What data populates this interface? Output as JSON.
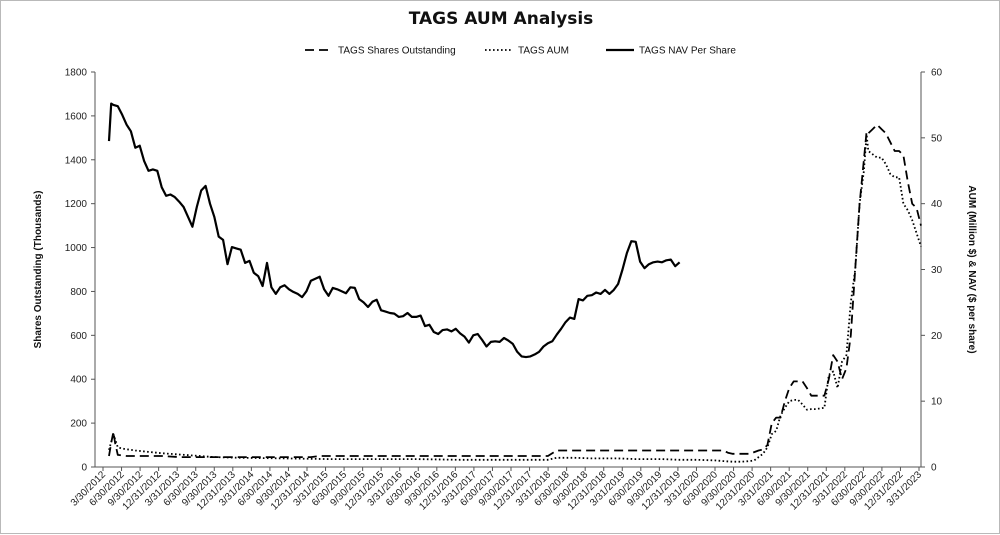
{
  "chart_data": {
    "type": "line",
    "title": "TAGS AUM Analysis",
    "ylabel_left": "Shares Outstanding (Thousands)",
    "ylabel_right": "AUM (Million $) & NAV ($ per share)",
    "ylim_left": [
      0,
      1800
    ],
    "ylim_right": [
      0,
      60
    ],
    "yticks_left": [
      0,
      200,
      400,
      600,
      800,
      1000,
      1200,
      1400,
      1600,
      1800
    ],
    "yticks_right": [
      0,
      10,
      20,
      30,
      40,
      50,
      60
    ],
    "legend_position": "top",
    "grid": false,
    "x_tick_labels": [
      "3/30/2012",
      "6/30/2012",
      "9/30/2012",
      "12/31/2012",
      "3/31/2013",
      "6/30/2013",
      "9/30/2013",
      "12/31/2013",
      "3/31/2014",
      "6/30/2014",
      "9/30/2014",
      "12/31/2014",
      "3/31/2015",
      "6/30/2015",
      "9/30/2015",
      "12/31/2015",
      "3/31/2016",
      "6/30/2016",
      "9/30/2016",
      "12/31/2016",
      "3/31/2017",
      "6/30/2017",
      "9/30/2017",
      "12/31/2017",
      "3/31/2018",
      "6/30/2018",
      "9/30/2018",
      "12/31/2018",
      "3/31/2019",
      "6/30/2019",
      "9/30/2019",
      "12/31/2019",
      "3/31/2020",
      "6/30/2020",
      "9/30/2020",
      "12/31/2020",
      "3/31/2021",
      "6/30/2021",
      "9/30/2021",
      "12/31/2021",
      "3/31/2022",
      "6/30/2022",
      "9/30/2022",
      "12/31/2022",
      "3/31/2023"
    ],
    "series": [
      {
        "name": "TAGS Shares Outstanding",
        "axis": "left",
        "style": "dashed",
        "points": [
          [
            0,
            50
          ],
          [
            0.5,
            110
          ],
          [
            1,
            160
          ],
          [
            1.4,
            110
          ],
          [
            2,
            55
          ],
          [
            4,
            50
          ],
          [
            8,
            50
          ],
          [
            12,
            50
          ],
          [
            16,
            45
          ],
          [
            22,
            45
          ],
          [
            28,
            45
          ],
          [
            34,
            45
          ],
          [
            40,
            45
          ],
          [
            46,
            45
          ],
          [
            48,
            50
          ],
          [
            50,
            50
          ],
          [
            52,
            50
          ],
          [
            54,
            50
          ],
          [
            56,
            50
          ],
          [
            58,
            50
          ],
          [
            60,
            50
          ],
          [
            62,
            50
          ],
          [
            64,
            50
          ],
          [
            66,
            50
          ],
          [
            68,
            50
          ],
          [
            70,
            50
          ],
          [
            72,
            50
          ],
          [
            74,
            50
          ],
          [
            76,
            50
          ],
          [
            78,
            50
          ],
          [
            80,
            50
          ],
          [
            82,
            50
          ],
          [
            84,
            50
          ],
          [
            86,
            50
          ],
          [
            88,
            50
          ],
          [
            90,
            50
          ],
          [
            92,
            50
          ],
          [
            94,
            50
          ],
          [
            96,
            50
          ],
          [
            98,
            50
          ],
          [
            100,
            50
          ],
          [
            102,
            75
          ],
          [
            104,
            75
          ],
          [
            106,
            75
          ],
          [
            108,
            75
          ],
          [
            110,
            75
          ],
          [
            112,
            75
          ],
          [
            114,
            75
          ],
          [
            116,
            75
          ],
          [
            118,
            75
          ],
          [
            120,
            75
          ],
          [
            122,
            75
          ],
          [
            124,
            75
          ],
          [
            126,
            75
          ],
          [
            128,
            75
          ],
          [
            130,
            75
          ],
          [
            132,
            75
          ],
          [
            134,
            75
          ],
          [
            136,
            75
          ],
          [
            138,
            75
          ],
          [
            140,
            75
          ],
          [
            141,
            65
          ],
          [
            142,
            60
          ],
          [
            144,
            60
          ],
          [
            146,
            60
          ],
          [
            148,
            75
          ],
          [
            149,
            80
          ],
          [
            150,
            100
          ],
          [
            151,
            200
          ],
          [
            152,
            225
          ],
          [
            153,
            225
          ],
          [
            154,
            300
          ],
          [
            155,
            360
          ],
          [
            156,
            390
          ],
          [
            158,
            390
          ],
          [
            159,
            360
          ],
          [
            160,
            325
          ],
          [
            162,
            325
          ],
          [
            163,
            325
          ],
          [
            164,
            400
          ],
          [
            165,
            510
          ],
          [
            166,
            480
          ],
          [
            167,
            400
          ],
          [
            168,
            450
          ],
          [
            169,
            600
          ],
          [
            170,
            900
          ],
          [
            171,
            1200
          ],
          [
            172,
            1400
          ],
          [
            172.6,
            1530
          ],
          [
            173,
            1520
          ],
          [
            174,
            1540
          ],
          [
            175,
            1560
          ],
          [
            176,
            1540
          ],
          [
            177,
            1520
          ],
          [
            178,
            1480
          ],
          [
            179,
            1440
          ],
          [
            180,
            1440
          ],
          [
            181,
            1420
          ],
          [
            182,
            1300
          ],
          [
            183,
            1200
          ],
          [
            184,
            1180
          ],
          [
            185,
            1100
          ]
        ]
      },
      {
        "name": "TAGS AUM",
        "axis": "right",
        "style": "dotted",
        "points": [
          [
            0,
            2.6
          ],
          [
            1,
            5.0
          ],
          [
            2,
            3
          ],
          [
            3,
            2.8
          ],
          [
            6,
            2.5
          ],
          [
            9,
            2.3
          ],
          [
            12,
            2.1
          ],
          [
            16,
            1.9
          ],
          [
            20,
            1.7
          ],
          [
            24,
            1.5
          ],
          [
            30,
            1.4
          ],
          [
            40,
            1.3
          ],
          [
            50,
            1.2
          ],
          [
            60,
            1.2
          ],
          [
            70,
            1.2
          ],
          [
            80,
            1.1
          ],
          [
            90,
            1.1
          ],
          [
            100,
            1.1
          ],
          [
            102,
            1.4
          ],
          [
            106,
            1.4
          ],
          [
            110,
            1.3
          ],
          [
            116,
            1.3
          ],
          [
            120,
            1.2
          ],
          [
            126,
            1.2
          ],
          [
            130,
            1.1
          ],
          [
            134,
            1.1
          ],
          [
            138,
            1.0
          ],
          [
            140,
            0.9
          ],
          [
            142,
            0.8
          ],
          [
            144,
            0.8
          ],
          [
            146,
            0.9
          ],
          [
            147,
            1.0
          ],
          [
            149,
            2
          ],
          [
            150,
            3
          ],
          [
            151,
            5
          ],
          [
            152,
            5.5
          ],
          [
            153,
            7.8
          ],
          [
            154,
            9
          ],
          [
            155,
            10
          ],
          [
            156,
            10.2
          ],
          [
            157,
            10.2
          ],
          [
            158,
            9.5
          ],
          [
            159,
            8.7
          ],
          [
            160,
            8.8
          ],
          [
            161,
            8.8
          ],
          [
            162,
            8.9
          ],
          [
            163,
            9
          ],
          [
            164,
            14
          ],
          [
            165,
            14.5
          ],
          [
            166,
            12
          ],
          [
            167,
            16
          ],
          [
            168,
            17
          ],
          [
            169,
            25
          ],
          [
            170,
            30
          ],
          [
            171,
            40
          ],
          [
            172,
            45
          ],
          [
            172.6,
            50.5
          ],
          [
            173,
            48
          ],
          [
            174,
            47.5
          ],
          [
            175,
            47
          ],
          [
            176,
            47
          ],
          [
            177,
            46
          ],
          [
            178,
            44.5
          ],
          [
            179,
            44
          ],
          [
            180,
            44
          ],
          [
            181,
            40
          ],
          [
            182,
            39
          ],
          [
            183,
            37.5
          ],
          [
            184,
            35.5
          ],
          [
            185,
            33.5
          ]
        ]
      },
      {
        "name": "TAGS NAV Per Share",
        "axis": "right",
        "style": "solid",
        "points": [
          [
            0,
            49.5
          ],
          [
            0.5,
            55.2
          ],
          [
            1,
            55
          ],
          [
            2,
            54.8
          ],
          [
            3,
            53.5
          ],
          [
            4,
            52
          ],
          [
            5,
            51
          ],
          [
            6,
            48.5
          ],
          [
            7,
            48.8
          ],
          [
            8,
            46.5
          ],
          [
            9,
            45
          ],
          [
            10,
            45.2
          ],
          [
            11,
            45
          ],
          [
            12,
            42.5
          ],
          [
            13,
            41.2
          ],
          [
            14,
            41.4
          ],
          [
            15,
            41
          ],
          [
            16,
            40.3
          ],
          [
            17,
            39.5
          ],
          [
            18,
            38
          ],
          [
            19,
            36.5
          ],
          [
            20,
            39.5
          ],
          [
            21,
            42
          ],
          [
            22,
            42.7
          ],
          [
            23,
            40
          ],
          [
            24,
            38
          ],
          [
            25,
            35
          ],
          [
            26,
            34.5
          ],
          [
            27,
            30.8
          ],
          [
            28,
            33.4
          ],
          [
            29,
            33.2
          ],
          [
            30,
            33
          ],
          [
            31,
            31
          ],
          [
            32,
            31.3
          ],
          [
            33,
            29.5
          ],
          [
            34,
            29
          ],
          [
            35,
            27.5
          ],
          [
            36,
            31
          ],
          [
            37,
            27.3
          ],
          [
            38,
            26.3
          ],
          [
            39,
            27.3
          ],
          [
            40,
            27.6
          ],
          [
            41,
            27
          ],
          [
            42,
            26.6
          ],
          [
            43,
            26.3
          ],
          [
            44,
            25.8
          ],
          [
            45,
            26.7
          ],
          [
            46,
            28.3
          ],
          [
            47,
            28.6
          ],
          [
            48,
            28.9
          ],
          [
            49,
            27
          ],
          [
            50,
            26
          ],
          [
            51,
            27.2
          ],
          [
            52,
            27
          ],
          [
            53,
            26.7
          ],
          [
            54,
            26.4
          ],
          [
            55,
            27.3
          ],
          [
            56,
            27.2
          ],
          [
            57,
            25.5
          ],
          [
            58,
            25
          ],
          [
            59,
            24.3
          ],
          [
            60,
            25.1
          ],
          [
            61,
            25.4
          ],
          [
            62,
            23.8
          ],
          [
            63,
            23.6
          ],
          [
            64,
            23.4
          ],
          [
            65,
            23.3
          ],
          [
            66,
            22.8
          ],
          [
            67,
            22.9
          ],
          [
            68,
            23.4
          ],
          [
            69,
            22.8
          ],
          [
            70,
            22.8
          ],
          [
            71,
            23
          ],
          [
            72,
            21.4
          ],
          [
            73,
            21.6
          ],
          [
            74,
            20.5
          ],
          [
            75,
            20.2
          ],
          [
            76,
            20.8
          ],
          [
            77,
            20.9
          ],
          [
            78,
            20.6
          ],
          [
            79,
            21
          ],
          [
            80,
            20.3
          ],
          [
            81,
            19.8
          ],
          [
            82,
            18.9
          ],
          [
            83,
            20
          ],
          [
            84,
            20.2
          ],
          [
            85,
            19.3
          ],
          [
            86,
            18.3
          ],
          [
            87,
            19
          ],
          [
            88,
            19.1
          ],
          [
            89,
            19
          ],
          [
            90,
            19.6
          ],
          [
            91,
            19.2
          ],
          [
            92,
            18.7
          ],
          [
            93,
            17.5
          ],
          [
            94,
            16.8
          ],
          [
            95,
            16.7
          ],
          [
            96,
            16.8
          ],
          [
            97,
            17.1
          ],
          [
            98,
            17.5
          ],
          [
            99,
            18.3
          ],
          [
            100,
            18.8
          ],
          [
            101,
            19.1
          ],
          [
            102,
            20.1
          ],
          [
            103,
            21
          ],
          [
            104,
            22
          ],
          [
            105,
            22.7
          ],
          [
            106,
            22.5
          ],
          [
            107,
            25.5
          ],
          [
            108,
            25.3
          ],
          [
            109,
            26
          ],
          [
            110,
            26.1
          ],
          [
            111,
            26.5
          ],
          [
            112,
            26.3
          ],
          [
            113,
            26.9
          ],
          [
            114,
            26.3
          ],
          [
            115,
            26.9
          ],
          [
            116,
            27.8
          ],
          [
            117,
            30
          ],
          [
            118,
            32.5
          ],
          [
            119,
            34.3
          ],
          [
            120,
            34.2
          ],
          [
            121,
            31.2
          ],
          [
            122,
            30.2
          ],
          [
            123,
            30.8
          ],
          [
            124,
            31.1
          ],
          [
            125,
            31.2
          ],
          [
            126,
            31.1
          ],
          [
            127,
            31.4
          ],
          [
            128,
            31.5
          ],
          [
            129,
            30.5
          ],
          [
            130,
            31.1
          ]
        ]
      }
    ]
  }
}
